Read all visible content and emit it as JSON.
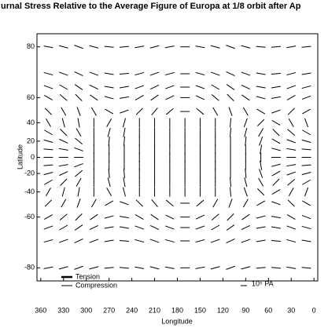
{
  "chart_data": {
    "type": "vector-field",
    "title": "urnal Stress Relative to the Average Figure of Europa at 1/8 orbit after Ap",
    "x_label": "Longitude",
    "y_label": "Latitude",
    "xlim": [
      365,
      -5
    ],
    "xticks": [
      360,
      330,
      300,
      270,
      240,
      210,
      180,
      150,
      120,
      90,
      60,
      30,
      0
    ],
    "ylim": [
      -82.5,
      82.5
    ],
    "yticks": [
      80,
      60,
      40,
      20,
      0,
      -20,
      -40,
      -60,
      -80
    ],
    "y_scale": "mercator",
    "color": "#000000",
    "legend": [
      "Tension",
      "Compression"
    ],
    "scale_label": "10⁵ PA",
    "lons": [
      350,
      330,
      310,
      290,
      270,
      250,
      230,
      210,
      190,
      170,
      150,
      130,
      110,
      90,
      70,
      50,
      30,
      10
    ],
    "lats": [
      80,
      72,
      66,
      60,
      50,
      40,
      30,
      20,
      10,
      0,
      -10,
      -20,
      -30,
      -40,
      -50,
      -60,
      -66,
      -72,
      -80
    ],
    "angles": [
      [
        -10,
        -15,
        -20,
        -15,
        -5,
        5,
        10,
        15,
        10,
        0,
        -10,
        -15,
        -20,
        -15,
        -5,
        5,
        10,
        5
      ],
      [
        -15,
        -20,
        -25,
        -20,
        -10,
        5,
        15,
        20,
        15,
        0,
        -15,
        -20,
        -25,
        -20,
        -10,
        5,
        15,
        10
      ],
      [
        -20,
        -30,
        -35,
        -25,
        -10,
        10,
        20,
        25,
        20,
        0,
        -20,
        -30,
        -35,
        -25,
        -10,
        10,
        20,
        15
      ],
      [
        -30,
        -40,
        -45,
        -35,
        -15,
        10,
        30,
        35,
        25,
        0,
        -25,
        -40,
        -45,
        -35,
        -15,
        10,
        30,
        20
      ],
      [
        -45,
        -60,
        -70,
        -60,
        -30,
        20,
        45,
        50,
        40,
        0,
        -40,
        -60,
        -70,
        -60,
        -30,
        20,
        45,
        30
      ],
      [
        -60,
        -75,
        -80,
        90,
        60,
        75,
        90,
        90,
        90,
        90,
        90,
        90,
        85,
        70,
        45,
        -30,
        -60,
        -70
      ],
      [
        -30,
        -45,
        -60,
        90,
        75,
        80,
        90,
        90,
        90,
        90,
        90,
        90,
        85,
        75,
        60,
        -45,
        -40,
        -30
      ],
      [
        -15,
        -25,
        -40,
        90,
        85,
        85,
        90,
        90,
        90,
        90,
        90,
        90,
        90,
        85,
        70,
        -30,
        -20,
        -15
      ],
      [
        -5,
        -10,
        -20,
        90,
        90,
        90,
        90,
        90,
        90,
        90,
        90,
        90,
        90,
        90,
        80,
        -15,
        -10,
        -5
      ],
      [
        0,
        0,
        0,
        90,
        90,
        90,
        90,
        90,
        90,
        90,
        90,
        90,
        90,
        90,
        90,
        0,
        0,
        0
      ],
      [
        5,
        10,
        20,
        90,
        90,
        90,
        90,
        90,
        90,
        90,
        90,
        90,
        90,
        90,
        -80,
        15,
        10,
        5
      ],
      [
        15,
        25,
        40,
        90,
        -85,
        -85,
        90,
        90,
        90,
        90,
        90,
        90,
        90,
        -85,
        -70,
        30,
        20,
        15
      ],
      [
        30,
        45,
        60,
        90,
        -75,
        -80,
        90,
        90,
        90,
        90,
        90,
        90,
        -85,
        -75,
        -60,
        45,
        40,
        30
      ],
      [
        60,
        75,
        80,
        90,
        -60,
        -75,
        90,
        90,
        90,
        90,
        90,
        90,
        -85,
        -70,
        -45,
        30,
        60,
        70
      ],
      [
        45,
        60,
        70,
        60,
        30,
        -20,
        -45,
        -50,
        -40,
        0,
        40,
        60,
        70,
        60,
        30,
        -20,
        -45,
        -30
      ],
      [
        30,
        40,
        45,
        35,
        15,
        -10,
        -30,
        -35,
        -25,
        0,
        25,
        40,
        45,
        35,
        15,
        -10,
        -30,
        -20
      ],
      [
        20,
        30,
        35,
        25,
        10,
        -10,
        -20,
        -25,
        -20,
        0,
        20,
        30,
        35,
        25,
        10,
        -10,
        -20,
        -15
      ],
      [
        15,
        20,
        25,
        20,
        10,
        -5,
        -15,
        -20,
        -15,
        0,
        15,
        20,
        25,
        20,
        10,
        -5,
        -15,
        -10
      ],
      [
        10,
        15,
        20,
        15,
        5,
        -5,
        -10,
        -15,
        -10,
        0,
        10,
        15,
        20,
        15,
        5,
        -5,
        -10,
        -5
      ]
    ]
  }
}
